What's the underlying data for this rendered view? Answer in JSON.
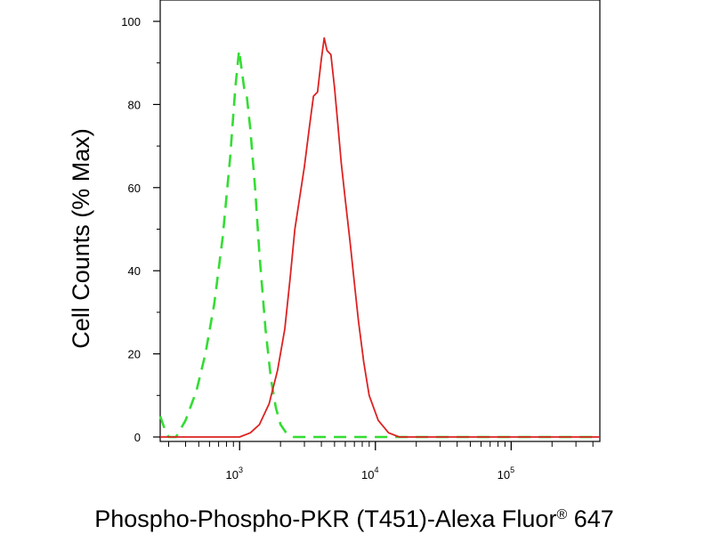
{
  "chart_data": {
    "type": "line",
    "title": "",
    "xlabel": "Phospho-Phospho-PKR (T451)-Alexa Fluor",
    "xlabel_sup": "®",
    "xlabel_tail": " 647",
    "ylabel": "Cell Counts (% Max)",
    "x_scale": "log",
    "xlim": [
      260,
      450000
    ],
    "ylim": [
      0,
      100
    ],
    "yticks": [
      0,
      20,
      40,
      60,
      80,
      100
    ],
    "ytick_labels": [
      "0",
      "20",
      "40",
      "60",
      "80",
      "100"
    ],
    "xticks_major": [
      {
        "value": 1000,
        "base": "10",
        "exp": "3"
      },
      {
        "value": 10000,
        "base": "10",
        "exp": "4"
      },
      {
        "value": 100000,
        "base": "10",
        "exp": "5"
      }
    ],
    "grid": false,
    "legend": "none",
    "series": [
      {
        "color": "#33dd33",
        "style": "dashed",
        "x": [
          260,
          280,
          300,
          340,
          400,
          480,
          560,
          650,
          750,
          850,
          930,
          990,
          1040,
          1080,
          1130,
          1200,
          1300,
          1400,
          1550,
          1700,
          1850,
          2000,
          2200,
          2500,
          3000,
          4000,
          10000,
          100000,
          450000
        ],
        "y": [
          5,
          2,
          0,
          0,
          4,
          11,
          20,
          32,
          48,
          67,
          84,
          93,
          88,
          84,
          82,
          74,
          60,
          44,
          26,
          14,
          7,
          3,
          1,
          0,
          0,
          0,
          0,
          0,
          0
        ]
      },
      {
        "color": "#dd2222",
        "style": "solid",
        "x": [
          260,
          1000,
          1200,
          1400,
          1650,
          1900,
          2150,
          2350,
          2550,
          2750,
          3000,
          3250,
          3500,
          3750,
          4000,
          4200,
          4400,
          4700,
          5000,
          5300,
          5600,
          6000,
          6500,
          7000,
          7500,
          8200,
          9000,
          10500,
          12500,
          15000,
          18000,
          100000,
          450000
        ],
        "y": [
          0,
          0,
          1,
          3,
          8,
          16,
          26,
          38,
          50,
          57,
          65,
          74,
          82,
          83,
          91,
          96,
          93,
          92,
          84,
          75,
          66,
          57,
          47,
          37,
          28,
          18,
          10,
          4,
          1,
          0,
          0,
          0,
          0
        ]
      }
    ]
  }
}
